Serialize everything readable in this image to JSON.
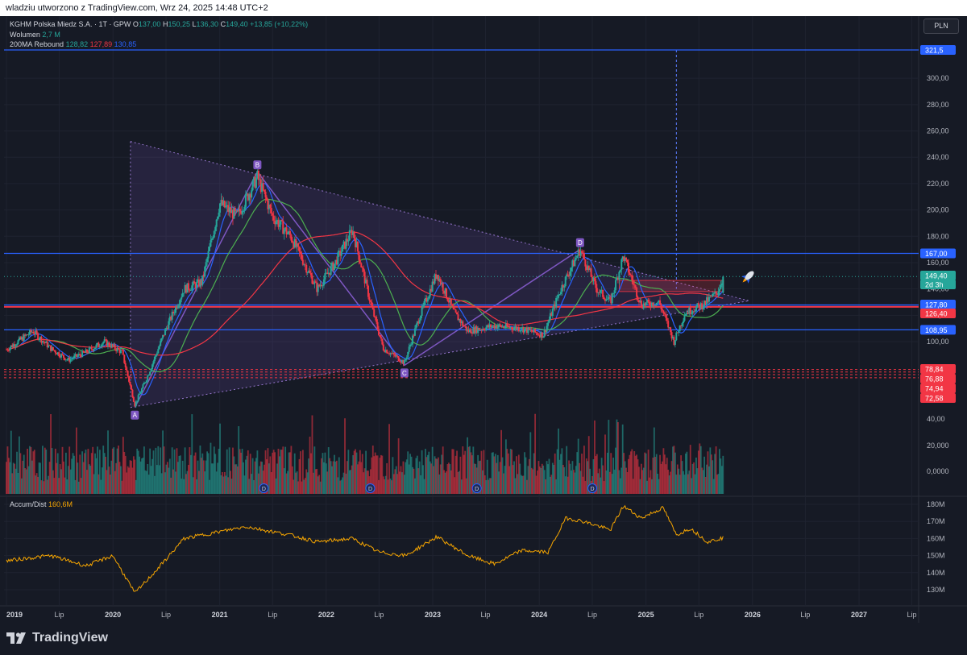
{
  "header": {
    "attribution": "wladziu utworzono z TradingView.com, Wrz 24, 2025 14:48 UTC+2"
  },
  "legend": {
    "symbol": "KGHM Polska Miedz S.A. · 1T · GPW",
    "open_label": "O",
    "open": "137,00",
    "high_label": "H",
    "high": "150,25",
    "low_label": "L",
    "low": "136,30",
    "close_label": "C",
    "close": "149,40",
    "change": "+13,85 (+10,22%)",
    "volume_label": "Wolumen",
    "volume_value": "2,7 M",
    "ma_label": "200MA Rebound",
    "ma_values": [
      "128,82",
      "127,89",
      "130,85"
    ]
  },
  "currency_button": "PLN",
  "accum_dist": {
    "label": "Accum/Dist",
    "value": "160,6M"
  },
  "footer": {
    "logo_text": "TradingView"
  },
  "colors": {
    "background": "#161a25",
    "grid": "#1f2330",
    "up": "#26a69a",
    "down": "#f23645",
    "horizontal_blue": "#2962ff",
    "horizontal_red": "#f23645",
    "pattern_purple": "#7e57c2",
    "ma_red": "#f23645",
    "ma_green": "#4caf50",
    "ma_blue": "#2962ff",
    "accum_dist": "#f7a600",
    "text": "#b2b5be"
  },
  "chart_data": {
    "type": "candlestick",
    "symbol": "KGHM Polska Miedz S.A.",
    "interval": "1T",
    "exchange": "GPW",
    "currency": "PLN",
    "last_price": 149.4,
    "ohlc_last": {
      "open": 137.0,
      "high": 150.25,
      "low": 136.3,
      "close": 149.4,
      "change": 13.85,
      "change_pct": 10.22
    },
    "price_axis_ticks": [
      "100,00",
      "120,00",
      "140,00",
      "160,00",
      "180,00",
      "200,00",
      "220,00",
      "240,00",
      "260,00",
      "280,00",
      "300,00"
    ],
    "volume_axis_ticks": [
      "0,0000",
      "20,000",
      "40,00"
    ],
    "accum_axis_ticks": [
      "130M",
      "140M",
      "150M",
      "160M",
      "170M",
      "180M"
    ],
    "time_axis_labels": [
      "2019",
      "Lip",
      "2020",
      "Lip",
      "2021",
      "Lip",
      "2022",
      "Lip",
      "2023",
      "Lip",
      "2024",
      "Lip",
      "2025",
      "Lip",
      "2026",
      "Lip",
      "2027",
      "Lip"
    ],
    "price_labels": [
      {
        "text": "321,5",
        "value": 321.5,
        "color": "#2962ff"
      },
      {
        "text": "167,00",
        "value": 167.0,
        "color": "#2962ff"
      },
      {
        "text": "149,40",
        "value": 149.4,
        "color": "#26a69a"
      },
      {
        "text": "2d 3h",
        "value": 146.0,
        "color": "#26a69a"
      },
      {
        "text": "127,80",
        "value": 127.8,
        "color": "#2962ff"
      },
      {
        "text": "126,40",
        "value": 126.4,
        "color": "#f23645"
      },
      {
        "text": "108,95",
        "value": 108.95,
        "color": "#2962ff"
      },
      {
        "text": "78,84",
        "value": 78.84,
        "color": "#f23645"
      },
      {
        "text": "76,88",
        "value": 76.88,
        "color": "#f23645"
      },
      {
        "text": "74,94",
        "value": 74.94,
        "color": "#f23645"
      },
      {
        "text": "72,58",
        "value": 72.58,
        "color": "#f23645"
      }
    ],
    "horizontal_lines": [
      {
        "value": 321.5,
        "color": "#2962ff",
        "style": "solid"
      },
      {
        "value": 167.0,
        "color": "#2962ff",
        "style": "solid"
      },
      {
        "value": 127.8,
        "color": "#2962ff",
        "style": "solid"
      },
      {
        "value": 126.4,
        "color": "#f23645",
        "style": "solid"
      },
      {
        "value": 108.95,
        "color": "#2962ff",
        "style": "solid"
      },
      {
        "value": 78.84,
        "color": "#f23645",
        "style": "dashed"
      },
      {
        "value": 76.88,
        "color": "#f23645",
        "style": "dashed"
      },
      {
        "value": 74.94,
        "color": "#f23645",
        "style": "dashed"
      },
      {
        "value": 72.58,
        "color": "#f23645",
        "style": "dashed"
      }
    ],
    "abcd_points": [
      {
        "label": "A",
        "date": "2020-03-16",
        "price": 50.0
      },
      {
        "label": "B",
        "date": "2021-05-10",
        "price": 229.0
      },
      {
        "label": "C",
        "date": "2022-09-26",
        "price": 82.0
      },
      {
        "label": "D",
        "date": "2024-05-20",
        "price": 170.0
      }
    ],
    "triangle": {
      "upper": [
        {
          "date": "2020-03-01",
          "price": 252.0
        },
        {
          "date": "2025-12-20",
          "price": 131.0
        }
      ],
      "lower": [
        {
          "date": "2020-03-01",
          "price": 50.0
        },
        {
          "date": "2025-12-20",
          "price": 131.0
        }
      ]
    },
    "dividend_markers": [
      "2021-06",
      "2022-06",
      "2023-06",
      "2024-07"
    ],
    "series_anchors": [
      {
        "date": "2019-01-01",
        "price": 94
      },
      {
        "date": "2019-04-01",
        "price": 108
      },
      {
        "date": "2019-06-01",
        "price": 95
      },
      {
        "date": "2019-08-01",
        "price": 86
      },
      {
        "date": "2019-10-01",
        "price": 92
      },
      {
        "date": "2019-12-01",
        "price": 100
      },
      {
        "date": "2020-02-01",
        "price": 92
      },
      {
        "date": "2020-03-16",
        "price": 52
      },
      {
        "date": "2020-05-01",
        "price": 75
      },
      {
        "date": "2020-07-01",
        "price": 110
      },
      {
        "date": "2020-09-01",
        "price": 140
      },
      {
        "date": "2020-11-01",
        "price": 145
      },
      {
        "date": "2021-01-01",
        "price": 205
      },
      {
        "date": "2021-03-01",
        "price": 195
      },
      {
        "date": "2021-05-10",
        "price": 225
      },
      {
        "date": "2021-07-01",
        "price": 195
      },
      {
        "date": "2021-09-01",
        "price": 180
      },
      {
        "date": "2021-12-01",
        "price": 140
      },
      {
        "date": "2022-02-01",
        "price": 160
      },
      {
        "date": "2022-04-01",
        "price": 185
      },
      {
        "date": "2022-06-01",
        "price": 130
      },
      {
        "date": "2022-07-15",
        "price": 95
      },
      {
        "date": "2022-09-26",
        "price": 84
      },
      {
        "date": "2022-11-15",
        "price": 118
      },
      {
        "date": "2023-01-15",
        "price": 152
      },
      {
        "date": "2023-03-15",
        "price": 122
      },
      {
        "date": "2023-05-01",
        "price": 108
      },
      {
        "date": "2023-08-01",
        "price": 112
      },
      {
        "date": "2023-11-01",
        "price": 110
      },
      {
        "date": "2024-01-15",
        "price": 105
      },
      {
        "date": "2024-03-15",
        "price": 140
      },
      {
        "date": "2024-05-20",
        "price": 170
      },
      {
        "date": "2024-07-15",
        "price": 140
      },
      {
        "date": "2024-09-01",
        "price": 130
      },
      {
        "date": "2024-10-15",
        "price": 165
      },
      {
        "date": "2024-12-15",
        "price": 128
      },
      {
        "date": "2025-02-15",
        "price": 130
      },
      {
        "date": "2025-04-07",
        "price": 100
      },
      {
        "date": "2025-05-15",
        "price": 122
      },
      {
        "date": "2025-07-15",
        "price": 128
      },
      {
        "date": "2025-09-01",
        "price": 137
      },
      {
        "date": "2025-09-24",
        "price": 149.4
      }
    ],
    "accum_dist_anchors": [
      {
        "date": "2019-01-01",
        "value": 147
      },
      {
        "date": "2019-06-01",
        "value": 150
      },
      {
        "date": "2019-10-01",
        "value": 144
      },
      {
        "date": "2020-01-01",
        "value": 150
      },
      {
        "date": "2020-03-16",
        "value": 128
      },
      {
        "date": "2020-06-01",
        "value": 142
      },
      {
        "date": "2020-09-01",
        "value": 160
      },
      {
        "date": "2021-01-01",
        "value": 164
      },
      {
        "date": "2021-04-01",
        "value": 167
      },
      {
        "date": "2021-09-01",
        "value": 162
      },
      {
        "date": "2021-12-01",
        "value": 158
      },
      {
        "date": "2022-04-01",
        "value": 160
      },
      {
        "date": "2022-07-01",
        "value": 152
      },
      {
        "date": "2022-10-01",
        "value": 150
      },
      {
        "date": "2023-01-15",
        "value": 161
      },
      {
        "date": "2023-05-01",
        "value": 150
      },
      {
        "date": "2023-08-01",
        "value": 145
      },
      {
        "date": "2023-11-01",
        "value": 153
      },
      {
        "date": "2024-02-01",
        "value": 152
      },
      {
        "date": "2024-04-01",
        "value": 172
      },
      {
        "date": "2024-06-01",
        "value": 170
      },
      {
        "date": "2024-09-01",
        "value": 165
      },
      {
        "date": "2024-10-15",
        "value": 179
      },
      {
        "date": "2024-12-15",
        "value": 172
      },
      {
        "date": "2025-03-01",
        "value": 178
      },
      {
        "date": "2025-04-15",
        "value": 162
      },
      {
        "date": "2025-06-01",
        "value": 166
      },
      {
        "date": "2025-08-01",
        "value": 158
      },
      {
        "date": "2025-09-24",
        "value": 160.6
      }
    ]
  }
}
